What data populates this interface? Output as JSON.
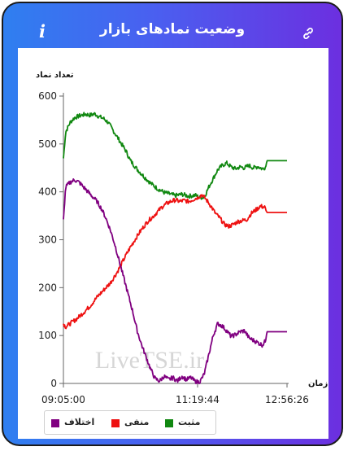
{
  "header": {
    "title": "وضعیت نمادهای بازار",
    "info_glyph": "i",
    "link_icon": "link-icon",
    "info_icon": "info-icon"
  },
  "colors": {
    "frame_left": "#2f7ff0",
    "frame_right": "#6c2fe0",
    "positive": "#118811",
    "negative": "#ee1111",
    "difference": "#800080"
  },
  "watermark": "LiveTSE.ir",
  "legend": {
    "items": [
      {
        "label": "مثبت",
        "color": "#118811"
      },
      {
        "label": "منفی",
        "color": "#ee1111"
      },
      {
        "label": "اختلاف",
        "color": "#800080"
      }
    ]
  },
  "chart_data": {
    "type": "line",
    "ylabel": "تعداد نماد",
    "xlabel": "زمان",
    "ylim": [
      0,
      600
    ],
    "yticks": [
      0,
      100,
      200,
      300,
      400,
      500,
      600
    ],
    "x_tick_labels": [
      "09:05:00",
      "11:19:44",
      "12:56:26"
    ],
    "x_tick_fracs": [
      0,
      0.6,
      1
    ],
    "grid": false,
    "legend_position": "bottom-left",
    "series": [
      {
        "name": "مثبت",
        "color": "#118811",
        "points": [
          [
            0,
            470
          ],
          [
            0.01,
            525
          ],
          [
            0.03,
            545
          ],
          [
            0.05,
            555
          ],
          [
            0.08,
            560
          ],
          [
            0.1,
            562
          ],
          [
            0.12,
            560
          ],
          [
            0.14,
            563
          ],
          [
            0.16,
            557
          ],
          [
            0.18,
            553
          ],
          [
            0.2,
            545
          ],
          [
            0.22,
            530
          ],
          [
            0.24,
            515
          ],
          [
            0.26,
            500
          ],
          [
            0.28,
            485
          ],
          [
            0.3,
            465
          ],
          [
            0.33,
            447
          ],
          [
            0.36,
            432
          ],
          [
            0.39,
            418
          ],
          [
            0.42,
            407
          ],
          [
            0.45,
            399
          ],
          [
            0.48,
            395
          ],
          [
            0.5,
            392
          ],
          [
            0.53,
            395
          ],
          [
            0.56,
            391
          ],
          [
            0.59,
            393
          ],
          [
            0.61,
            388
          ],
          [
            0.63,
            389
          ],
          [
            0.65,
            410
          ],
          [
            0.67,
            428
          ],
          [
            0.69,
            446
          ],
          [
            0.71,
            455
          ],
          [
            0.73,
            460
          ],
          [
            0.75,
            452
          ],
          [
            0.77,
            448
          ],
          [
            0.79,
            452
          ],
          [
            0.81,
            450
          ],
          [
            0.83,
            455
          ],
          [
            0.85,
            450
          ],
          [
            0.87,
            453
          ],
          [
            0.89,
            448
          ],
          [
            0.905,
            452
          ],
          [
            0.91,
            465
          ],
          [
            1.0,
            465
          ]
        ]
      },
      {
        "name": "منفی",
        "color": "#ee1111",
        "points": [
          [
            0,
            125
          ],
          [
            0.01,
            118
          ],
          [
            0.03,
            125
          ],
          [
            0.06,
            135
          ],
          [
            0.09,
            148
          ],
          [
            0.12,
            162
          ],
          [
            0.15,
            180
          ],
          [
            0.18,
            195
          ],
          [
            0.21,
            210
          ],
          [
            0.24,
            232
          ],
          [
            0.26,
            250
          ],
          [
            0.28,
            268
          ],
          [
            0.3,
            285
          ],
          [
            0.32,
            300
          ],
          [
            0.34,
            315
          ],
          [
            0.36,
            328
          ],
          [
            0.38,
            340
          ],
          [
            0.4,
            348
          ],
          [
            0.42,
            358
          ],
          [
            0.44,
            368
          ],
          [
            0.46,
            375
          ],
          [
            0.48,
            380
          ],
          [
            0.5,
            383
          ],
          [
            0.52,
            380
          ],
          [
            0.54,
            382
          ],
          [
            0.56,
            380
          ],
          [
            0.58,
            384
          ],
          [
            0.6,
            388
          ],
          [
            0.62,
            394
          ],
          [
            0.64,
            383
          ],
          [
            0.66,
            370
          ],
          [
            0.68,
            355
          ],
          [
            0.7,
            345
          ],
          [
            0.72,
            332
          ],
          [
            0.74,
            328
          ],
          [
            0.76,
            332
          ],
          [
            0.78,
            338
          ],
          [
            0.8,
            340
          ],
          [
            0.82,
            342
          ],
          [
            0.84,
            355
          ],
          [
            0.86,
            362
          ],
          [
            0.88,
            370
          ],
          [
            0.9,
            368
          ],
          [
            0.91,
            357
          ],
          [
            1.0,
            357
          ]
        ]
      },
      {
        "name": "اختلاف",
        "color": "#800080",
        "points": [
          [
            0,
            340
          ],
          [
            0.01,
            410
          ],
          [
            0.03,
            420
          ],
          [
            0.05,
            425
          ],
          [
            0.07,
            420
          ],
          [
            0.09,
            410
          ],
          [
            0.11,
            400
          ],
          [
            0.13,
            390
          ],
          [
            0.15,
            380
          ],
          [
            0.17,
            365
          ],
          [
            0.19,
            345
          ],
          [
            0.21,
            320
          ],
          [
            0.23,
            290
          ],
          [
            0.25,
            255
          ],
          [
            0.27,
            220
          ],
          [
            0.29,
            185
          ],
          [
            0.31,
            150
          ],
          [
            0.33,
            110
          ],
          [
            0.35,
            80
          ],
          [
            0.37,
            55
          ],
          [
            0.39,
            30
          ],
          [
            0.41,
            10
          ],
          [
            0.43,
            5
          ],
          [
            0.45,
            15
          ],
          [
            0.47,
            8
          ],
          [
            0.49,
            12
          ],
          [
            0.51,
            5
          ],
          [
            0.53,
            15
          ],
          [
            0.55,
            8
          ],
          [
            0.57,
            12
          ],
          [
            0.59,
            4
          ],
          [
            0.61,
            3
          ],
          [
            0.63,
            20
          ],
          [
            0.65,
            60
          ],
          [
            0.67,
            100
          ],
          [
            0.69,
            125
          ],
          [
            0.71,
            120
          ],
          [
            0.73,
            110
          ],
          [
            0.75,
            98
          ],
          [
            0.77,
            102
          ],
          [
            0.79,
            108
          ],
          [
            0.81,
            110
          ],
          [
            0.83,
            95
          ],
          [
            0.85,
            90
          ],
          [
            0.87,
            85
          ],
          [
            0.89,
            80
          ],
          [
            0.905,
            90
          ],
          [
            0.91,
            108
          ],
          [
            1.0,
            108
          ]
        ]
      }
    ]
  }
}
